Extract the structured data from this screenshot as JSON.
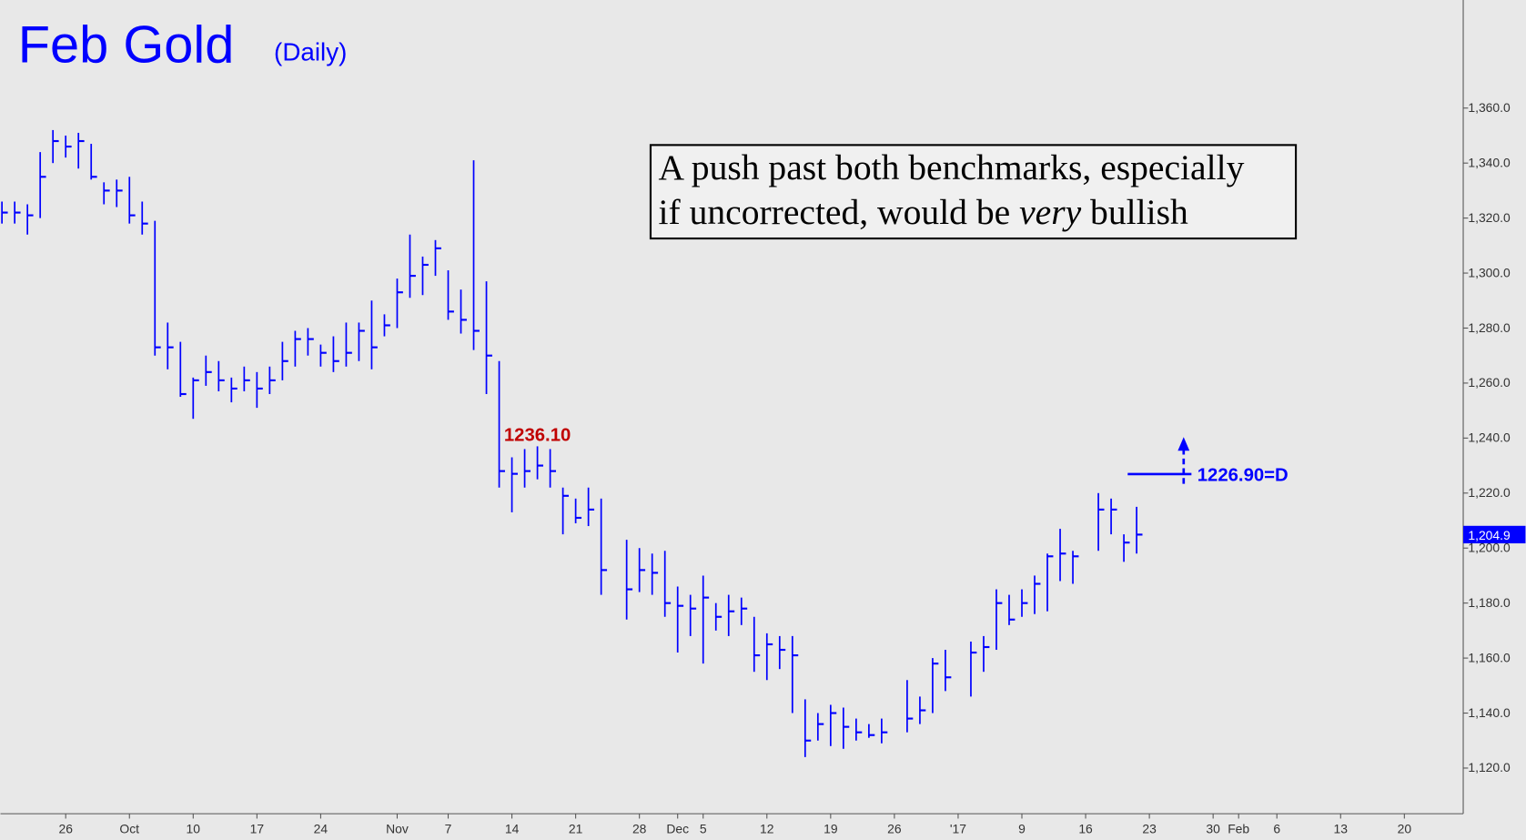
{
  "chart_data": {
    "type": "hlc",
    "title": "Feb Gold",
    "subtitle": "(Daily)",
    "color": "#0000ff",
    "x": [
      -5,
      -4,
      -3,
      -2,
      -1,
      0,
      1,
      2,
      3,
      4,
      5,
      6,
      7,
      8,
      9,
      10,
      11,
      12,
      13,
      14,
      15,
      16,
      17,
      18,
      19,
      20,
      21,
      22,
      23,
      24,
      25,
      26,
      27,
      28,
      29,
      30,
      31,
      32,
      33,
      34,
      35,
      36,
      37,
      38,
      39,
      40,
      41,
      42,
      44,
      45,
      46,
      47,
      48,
      49,
      50,
      51,
      52,
      53,
      54,
      55,
      56,
      57,
      58,
      59,
      60,
      61,
      62,
      63,
      64,
      66,
      67,
      68,
      69,
      71,
      72,
      73,
      74,
      75,
      76,
      77,
      78,
      79,
      81,
      82,
      83,
      84
    ],
    "high": [
      1326,
      1326,
      1325,
      1344,
      1352,
      1350,
      1351,
      1347,
      1333,
      1334,
      1335,
      1326,
      1319,
      1282,
      1275,
      1262,
      1270,
      1268,
      1262,
      1266,
      1264,
      1266,
      1275,
      1279,
      1280,
      1274,
      1277,
      1282,
      1282,
      1290,
      1285,
      1298,
      1314,
      1306,
      1312,
      1301,
      1294,
      1341,
      1297,
      1268,
      1233,
      1236,
      1237,
      1236,
      1222,
      1218,
      1222,
      1218,
      1203,
      1200,
      1198,
      1199,
      1186,
      1183,
      1190,
      1180,
      1183,
      1182,
      1175,
      1169,
      1168,
      1168,
      1145,
      1140,
      1143,
      1142,
      1138,
      1136,
      1138,
      1152,
      1146,
      1160,
      1163,
      1166,
      1168,
      1185,
      1183,
      1185,
      1190,
      1198,
      1207,
      1199,
      1220,
      1218,
      1205,
      1215
    ],
    "low": [
      1318,
      1318,
      1314,
      1320,
      1340,
      1342,
      1338,
      1334,
      1325,
      1324,
      1318,
      1314,
      1270,
      1265,
      1255,
      1247,
      1259,
      1257,
      1253,
      1257,
      1251,
      1256,
      1261,
      1266,
      1270,
      1266,
      1264,
      1266,
      1268,
      1265,
      1277,
      1280,
      1291,
      1292,
      1299,
      1283,
      1278,
      1272,
      1256,
      1222,
      1213,
      1222,
      1225,
      1222,
      1205,
      1209,
      1208,
      1183,
      1174,
      1184,
      1183,
      1175,
      1162,
      1168,
      1158,
      1170,
      1168,
      1172,
      1155,
      1152,
      1156,
      1140,
      1124,
      1130,
      1128,
      1127,
      1130,
      1131,
      1129,
      1133,
      1136,
      1140,
      1148,
      1146,
      1155,
      1163,
      1172,
      1175,
      1176,
      1177,
      1188,
      1187,
      1199,
      1205,
      1195,
      1198
    ],
    "close": [
      1322,
      1322,
      1321,
      1335,
      1348,
      1346,
      1348,
      1335,
      1330,
      1330,
      1321,
      1318,
      1273,
      1273,
      1256,
      1261,
      1264,
      1261,
      1258,
      1261,
      1258,
      1261,
      1268,
      1276,
      1276,
      1271,
      1268,
      1271,
      1279,
      1273,
      1281,
      1293,
      1299,
      1303,
      1309,
      1286,
      1283,
      1279,
      1270,
      1228,
      1227,
      1228,
      1230,
      1228,
      1219,
      1211,
      1214,
      1192,
      1185,
      1192,
      1191,
      1180,
      1179,
      1178,
      1182,
      1175,
      1177,
      1178,
      1161,
      1165,
      1163,
      1161,
      1130,
      1136,
      1140,
      1135,
      1133,
      1132,
      1133,
      1138,
      1141,
      1158,
      1153,
      1162,
      1164,
      1180,
      1174,
      1180,
      1187,
      1197,
      1198,
      1197,
      1214,
      1214,
      1202,
      1204.9
    ],
    "xlim": [
      -5.115,
      109.618
    ],
    "xticks": [
      {
        "value": 0,
        "label": "26"
      },
      {
        "value": 5,
        "label": "Oct"
      },
      {
        "value": 10,
        "label": "10"
      },
      {
        "value": 15,
        "label": "17"
      },
      {
        "value": 20,
        "label": "24"
      },
      {
        "value": 26,
        "label": "Nov"
      },
      {
        "value": 30,
        "label": "7"
      },
      {
        "value": 35,
        "label": "14"
      },
      {
        "value": 40,
        "label": "21"
      },
      {
        "value": 45,
        "label": "28"
      },
      {
        "value": 48,
        "label": "Dec"
      },
      {
        "value": 50,
        "label": "5"
      },
      {
        "value": 55,
        "label": "12"
      },
      {
        "value": 60,
        "label": "19"
      },
      {
        "value": 65,
        "label": "26"
      },
      {
        "value": 70,
        "label": "'17"
      },
      {
        "value": 75,
        "label": "9"
      },
      {
        "value": 80,
        "label": "16"
      },
      {
        "value": 85,
        "label": "23"
      },
      {
        "value": 90,
        "label": "30"
      },
      {
        "value": 92,
        "label": "Feb"
      },
      {
        "value": 95,
        "label": "6"
      },
      {
        "value": 100,
        "label": "13"
      },
      {
        "value": 105,
        "label": "20"
      }
    ],
    "ylim": [
      1103.4,
      1399.3
    ],
    "yticks": [
      {
        "value": 1120,
        "label": "1,120.0"
      },
      {
        "value": 1140,
        "label": "1,140.0"
      },
      {
        "value": 1160,
        "label": "1,160.0"
      },
      {
        "value": 1180,
        "label": "1,180.0"
      },
      {
        "value": 1200,
        "label": "1,200.0"
      },
      {
        "value": 1220,
        "label": "1,220.0"
      },
      {
        "value": 1240,
        "label": "1,240.0"
      },
      {
        "value": 1260,
        "label": "1,260.0"
      },
      {
        "value": 1280,
        "label": "1,280.0"
      },
      {
        "value": 1300,
        "label": "1,300.0"
      },
      {
        "value": 1320,
        "label": "1,320.0"
      },
      {
        "value": 1340,
        "label": "1,340.0"
      },
      {
        "value": 1360,
        "label": "1,360.0"
      }
    ],
    "last_price": {
      "value": 1204.9,
      "label": "1,204.9"
    },
    "peak_label": {
      "x": 37,
      "value": 1236.1,
      "label": "1236.10",
      "color": "#c00000"
    },
    "target": {
      "x": [
        83.3,
        88.3
      ],
      "value": 1226.9,
      "label": "1226.90=D"
    },
    "note": {
      "line1": "A push past both benchmarks, especially",
      "line2_start": "if uncorrected, would be ",
      "line2_italic": "very",
      "line2_end": " bullish"
    }
  }
}
